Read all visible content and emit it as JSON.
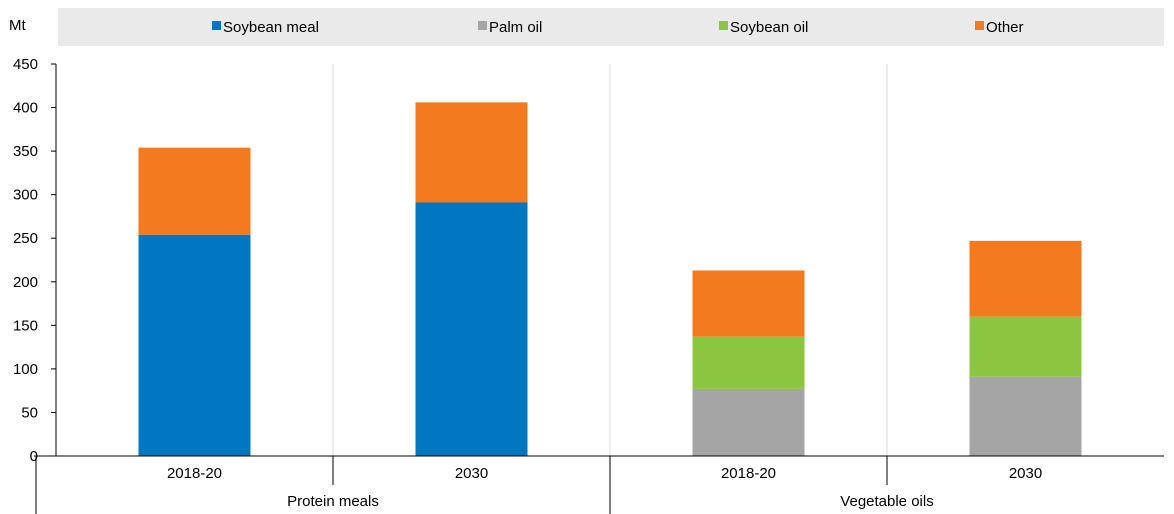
{
  "chart_data": {
    "type": "bar",
    "stacked": true,
    "unit_label": "Mt",
    "ylim": [
      0,
      450
    ],
    "yticks": [
      0,
      50,
      100,
      150,
      200,
      250,
      300,
      350,
      400,
      450
    ],
    "groups": [
      {
        "label": "Protein meals",
        "categories": [
          "2018-20",
          "2030"
        ]
      },
      {
        "label": "Vegetable oils",
        "categories": [
          "2018-20",
          "2030"
        ]
      }
    ],
    "categories": [
      "2018-20",
      "2030",
      "2018-20",
      "2030"
    ],
    "series": [
      {
        "name": "Soybean meal",
        "color": "#0077C0",
        "values": [
          254,
          291,
          0,
          0
        ]
      },
      {
        "name": "Palm oil",
        "color": "#A5A5A5",
        "values": [
          0,
          0,
          77,
          91
        ]
      },
      {
        "name": "Soybean oil",
        "color": "#8CC641",
        "values": [
          0,
          0,
          60,
          69
        ]
      },
      {
        "name": "Other",
        "color": "#F47A20",
        "values": [
          100,
          115,
          76,
          87
        ]
      }
    ],
    "grid": "vertical-separators",
    "legend_position": "top"
  }
}
